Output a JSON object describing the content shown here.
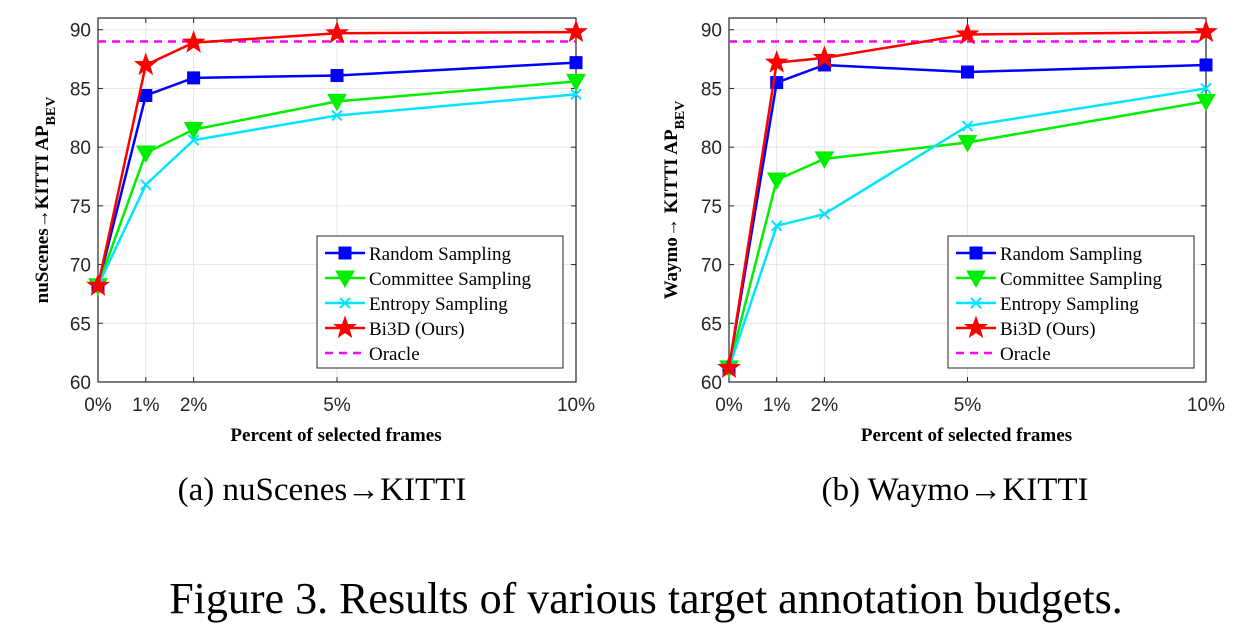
{
  "figure_caption": "Figure 3. Results of various target annotation budgets.",
  "legend_entries": [
    "Random Sampling",
    "Committee Sampling",
    "Entropy Sampling",
    "Bi3D (Ours)",
    "Oracle"
  ],
  "series_colors": {
    "Random Sampling": "#0000ff",
    "Committee Sampling": "#00ee00",
    "Entropy Sampling": "#00e5ff",
    "Bi3D (Ours)": "#ff0000",
    "Oracle": "#ff00ff"
  },
  "chart_data": [
    {
      "type": "line",
      "subcaption": "(a) nuScenes→KITTI",
      "xlabel": "Percent of selected frames",
      "ylabel_main": "nuScenes→KITTI AP",
      "ylabel_sub": "BEV",
      "x": [
        0,
        1,
        2,
        5,
        10
      ],
      "xtick_labels": [
        "0%",
        "1%",
        "2%",
        "5%",
        "10%"
      ],
      "yticks": [
        60,
        65,
        70,
        75,
        80,
        85,
        90
      ],
      "xlim": [
        0,
        10
      ],
      "ylim": [
        60,
        91
      ],
      "grid": true,
      "legend_position": "lower-right",
      "series": [
        {
          "name": "Random Sampling",
          "marker": "square",
          "values": [
            68.2,
            84.4,
            85.9,
            86.1,
            87.2
          ]
        },
        {
          "name": "Committee Sampling",
          "marker": "triangle-down",
          "values": [
            68.2,
            79.5,
            81.5,
            83.9,
            85.6
          ]
        },
        {
          "name": "Entropy Sampling",
          "marker": "x",
          "values": [
            68.2,
            76.8,
            80.6,
            82.7,
            84.5
          ]
        },
        {
          "name": "Bi3D (Ours)",
          "marker": "star",
          "values": [
            68.2,
            87.0,
            88.9,
            89.7,
            89.8
          ]
        }
      ],
      "oracle": {
        "name": "Oracle",
        "value": 89.0
      }
    },
    {
      "type": "line",
      "subcaption": "(b) Waymo→KITTI",
      "xlabel": "Percent of selected frames",
      "ylabel_main": "Waymo→ KITTI AP",
      "ylabel_sub": "BEV",
      "x": [
        0,
        1,
        2,
        5,
        10
      ],
      "xtick_labels": [
        "0%",
        "1%",
        "2%",
        "5%",
        "10%"
      ],
      "yticks": [
        60,
        65,
        70,
        75,
        80,
        85,
        90
      ],
      "xlim": [
        0,
        10
      ],
      "ylim": [
        60,
        91
      ],
      "grid": true,
      "legend_position": "lower-right",
      "series": [
        {
          "name": "Random Sampling",
          "marker": "square",
          "values": [
            61.2,
            85.5,
            87.0,
            86.4,
            87.0
          ]
        },
        {
          "name": "Committee Sampling",
          "marker": "triangle-down",
          "values": [
            61.2,
            77.2,
            79.0,
            80.4,
            83.9
          ]
        },
        {
          "name": "Entropy Sampling",
          "marker": "x",
          "values": [
            61.2,
            73.3,
            74.3,
            81.8,
            85.0
          ]
        },
        {
          "name": "Bi3D (Ours)",
          "marker": "star",
          "values": [
            61.2,
            87.2,
            87.6,
            89.6,
            89.8
          ]
        }
      ],
      "oracle": {
        "name": "Oracle",
        "value": 89.0
      }
    }
  ]
}
